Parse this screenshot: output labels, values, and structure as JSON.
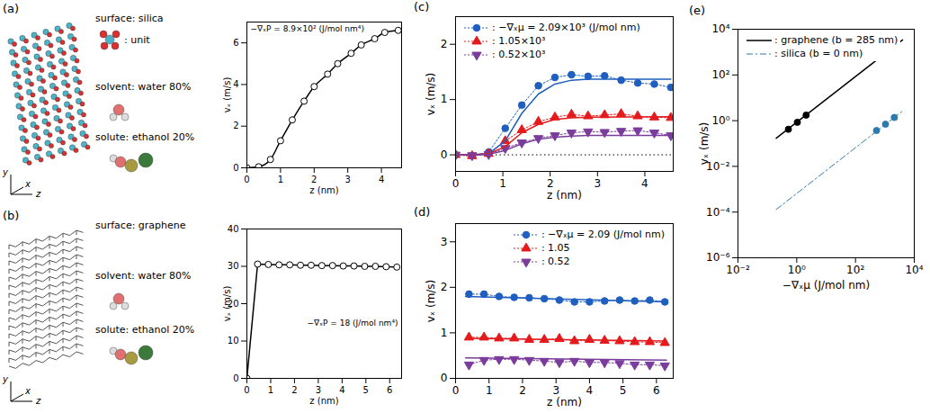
{
  "chart_data": [
    {
      "panel": "(a)",
      "type": "line",
      "description": [
        "surface: silica",
        ": unit",
        "solvent: water 80%",
        "solute: ethanol 20%"
      ],
      "triad": [
        "y",
        "x",
        "z"
      ],
      "annotation": "−∇ₓP = 8.9×10² (J/mol nm⁴)",
      "x_label": "z (nm)",
      "y_label": "vₓ (m/s)",
      "xlim": [
        0,
        4.6
      ],
      "xticks": [
        0,
        1,
        2,
        3,
        4
      ],
      "ylim": [
        0,
        7
      ],
      "yticks": [
        0,
        2,
        4,
        6
      ],
      "series": [
        {
          "type": "line",
          "marker": "open-circle",
          "line_style": "solid",
          "color": "#000000",
          "x": [
            0,
            0.35,
            0.7,
            1.0,
            1.35,
            1.7,
            2.0,
            2.4,
            2.7,
            3.1,
            3.4,
            3.8,
            4.1,
            4.5
          ],
          "values": [
            0,
            0.05,
            0.4,
            1.3,
            2.3,
            3.2,
            3.9,
            4.5,
            5.0,
            5.5,
            5.9,
            6.2,
            6.5,
            6.6
          ]
        }
      ]
    },
    {
      "panel": "(b)",
      "type": "line",
      "description": [
        "surface: graphene",
        "solvent: water 80%",
        "solute: ethanol 20%"
      ],
      "triad": [
        "y",
        "x",
        "z"
      ],
      "annotation": "−∇ₓP = 18 (J/mol nm⁴)",
      "x_label": "z (nm)",
      "y_label": "vₓ (m/s)",
      "xlim": [
        0,
        6.5
      ],
      "xticks": [
        0,
        1,
        2,
        3,
        4,
        5,
        6
      ],
      "ylim": [
        0,
        40
      ],
      "yticks": [
        0,
        10,
        20,
        30,
        40
      ],
      "series": [
        {
          "type": "line",
          "marker": "open-circle",
          "line_style": "solid",
          "color": "#000000",
          "x": [
            0,
            0.45,
            0.9,
            1.35,
            1.8,
            2.25,
            2.7,
            3.15,
            3.6,
            4.05,
            4.5,
            4.95,
            5.4,
            5.85,
            6.3
          ],
          "values": [
            0,
            30.6,
            30.5,
            30.4,
            30.4,
            30.3,
            30.3,
            30.2,
            30.2,
            30.1,
            30.1,
            30.0,
            30.0,
            29.9,
            29.8
          ]
        }
      ]
    },
    {
      "panel": "(c)",
      "type": "line",
      "x_label": "z (nm)",
      "y_label": "vₓ (m/s)",
      "xlim": [
        0,
        4.6
      ],
      "xticks": [
        0,
        1,
        2,
        3,
        4
      ],
      "ylim": [
        -0.3,
        2.5
      ],
      "yticks": [
        0,
        1,
        2
      ],
      "reference_y": 0,
      "legend": "top-left",
      "series": [
        {
          "name": ": −∇ₓμ = 2.09×10³ (J/mol nm)",
          "type": "scatter",
          "marker": "circle",
          "line_style": "dotted",
          "color": "#1f5fc0",
          "x": [
            0,
            0.35,
            0.7,
            1.05,
            1.4,
            1.75,
            2.1,
            2.45,
            2.8,
            3.15,
            3.5,
            3.85,
            4.2,
            4.55
          ],
          "values": [
            0,
            -0.02,
            0.05,
            0.48,
            0.9,
            1.25,
            1.4,
            1.45,
            1.42,
            1.43,
            1.35,
            1.3,
            1.28,
            1.22
          ]
        },
        {
          "name": ": 1.05×10³",
          "type": "scatter",
          "marker": "triangle",
          "line_style": "dotted",
          "color": "#e41a1c",
          "x": [
            0,
            0.35,
            0.7,
            1.05,
            1.4,
            1.75,
            2.1,
            2.45,
            2.8,
            3.15,
            3.5,
            3.85,
            4.2,
            4.55
          ],
          "values": [
            0,
            -0.02,
            0.02,
            0.25,
            0.45,
            0.6,
            0.68,
            0.73,
            0.7,
            0.72,
            0.74,
            0.7,
            0.68,
            0.67
          ]
        },
        {
          "name": ": 0.52×10³",
          "type": "scatter",
          "marker": "triangle-down",
          "line_style": "dotted",
          "color": "#7a3d9b",
          "x": [
            0,
            0.35,
            0.7,
            1.05,
            1.4,
            1.75,
            2.1,
            2.45,
            2.8,
            3.15,
            3.5,
            3.85,
            4.2,
            4.55
          ],
          "values": [
            0,
            -0.01,
            0.01,
            0.12,
            0.22,
            0.3,
            0.35,
            0.4,
            0.42,
            0.41,
            0.43,
            0.44,
            0.4,
            0.35
          ]
        },
        {
          "type": "line",
          "line_style": "solid",
          "color": "#1f5fc0",
          "x": [
            0,
            0.35,
            0.7,
            1.05,
            1.4,
            1.75,
            2.1,
            2.45,
            2.8,
            4.55
          ],
          "values": [
            0,
            0,
            0.02,
            0.25,
            0.75,
            1.1,
            1.28,
            1.35,
            1.37,
            1.37
          ]
        },
        {
          "type": "line",
          "line_style": "solid",
          "color": "#e41a1c",
          "x": [
            0,
            0.35,
            0.7,
            1.05,
            1.4,
            1.75,
            2.1,
            2.45,
            2.8,
            4.55
          ],
          "values": [
            0,
            0,
            0.02,
            0.15,
            0.4,
            0.55,
            0.64,
            0.67,
            0.68,
            0.69
          ]
        },
        {
          "type": "line",
          "line_style": "solid",
          "color": "#7a3d9b",
          "x": [
            0,
            0.35,
            0.7,
            1.05,
            1.4,
            1.75,
            2.1,
            2.45,
            2.8,
            4.55
          ],
          "values": [
            0,
            0,
            0.01,
            0.08,
            0.2,
            0.28,
            0.32,
            0.34,
            0.35,
            0.35
          ]
        }
      ]
    },
    {
      "panel": "(d)",
      "type": "line",
      "x_label": "z (nm)",
      "y_label": "vₓ (m/s)",
      "xlim": [
        0,
        6.5
      ],
      "xticks": [
        0,
        1,
        2,
        3,
        4,
        5,
        6
      ],
      "ylim": [
        0,
        3.4
      ],
      "yticks": [
        0,
        1,
        2,
        3
      ],
      "legend": "top-right",
      "series": [
        {
          "name": ": −∇ₓμ = 2.09 (J/mol nm)",
          "type": "scatter",
          "marker": "circle",
          "line_style": "dotted",
          "color": "#1f5fc0",
          "x": [
            0.4,
            0.85,
            1.3,
            1.75,
            2.2,
            2.65,
            3.1,
            3.55,
            4.0,
            4.45,
            4.9,
            5.35,
            5.8,
            6.25
          ],
          "values": [
            1.85,
            1.85,
            1.8,
            1.78,
            1.77,
            1.75,
            1.72,
            1.68,
            1.68,
            1.7,
            1.72,
            1.7,
            1.72,
            1.68
          ]
        },
        {
          "name": ": 1.05",
          "type": "scatter",
          "marker": "triangle",
          "line_style": "dotted",
          "color": "#e41a1c",
          "x": [
            0.4,
            0.85,
            1.3,
            1.75,
            2.2,
            2.65,
            3.1,
            3.55,
            4.0,
            4.45,
            4.9,
            5.35,
            5.8,
            6.25
          ],
          "values": [
            0.9,
            0.9,
            0.88,
            0.88,
            0.85,
            0.85,
            0.87,
            0.82,
            0.85,
            0.83,
            0.82,
            0.8,
            0.8,
            0.78
          ]
        },
        {
          "name": ": 0.52",
          "type": "scatter",
          "marker": "triangle-down",
          "line_style": "dotted",
          "color": "#7a3d9b",
          "x": [
            0.4,
            0.85,
            1.3,
            1.75,
            2.2,
            2.65,
            3.1,
            3.55,
            4.0,
            4.45,
            4.9,
            5.35,
            5.8,
            6.25
          ],
          "values": [
            0.3,
            0.4,
            0.42,
            0.42,
            0.4,
            0.38,
            0.35,
            0.38,
            0.35,
            0.35,
            0.33,
            0.3,
            0.3,
            0.28
          ]
        },
        {
          "type": "line",
          "line_style": "solid",
          "color": "#1f5fc0",
          "x": [
            0.3,
            6.3
          ],
          "values": [
            1.8,
            1.68
          ]
        },
        {
          "type": "line",
          "line_style": "solid",
          "color": "#e41a1c",
          "x": [
            0.3,
            6.3
          ],
          "values": [
            0.88,
            0.82
          ]
        },
        {
          "type": "line",
          "line_style": "solid",
          "color": "#7a3d9b",
          "x": [
            0.3,
            6.3
          ],
          "values": [
            0.45,
            0.4
          ]
        }
      ]
    },
    {
      "panel": "(e)",
      "type": "line",
      "log": true,
      "x_label": "−∇ₓμ (J/mol nm)",
      "y_label": "vₓ (m/s)",
      "xlim": [
        0.01,
        10000
      ],
      "xticks": [
        {
          "value": 0.01,
          "label": "10⁻²"
        },
        {
          "value": 1,
          "label": "10⁰"
        },
        {
          "value": 100,
          "label": "10²"
        },
        {
          "value": 10000,
          "label": "10⁴"
        }
      ],
      "ylim": [
        1e-06,
        10000
      ],
      "yticks": [
        {
          "value": 1e-06,
          "label": "10⁻⁶"
        },
        {
          "value": 0.0001,
          "label": "10⁻⁴"
        },
        {
          "value": 0.01,
          "label": "10⁻²"
        },
        {
          "value": 1,
          "label": "10⁰"
        },
        {
          "value": 100,
          "label": "10²"
        },
        {
          "value": 10000,
          "label": "10⁴"
        }
      ],
      "legend": "top-left",
      "series": [
        {
          "name": ": graphene (b = 285 nm)",
          "type": "line",
          "line_style": "solid",
          "color": "#000000",
          "x": [
            0.2,
            4000
          ],
          "values": [
            0.17,
            3400
          ]
        },
        {
          "type": "scatter",
          "marker": "circle",
          "color": "#000000",
          "x": [
            0.52,
            1.05,
            2.09
          ],
          "values": [
            0.42,
            0.85,
            1.75
          ]
        },
        {
          "name": ": silica (b = 0 nm)",
          "type": "line",
          "line_style": "dashdot",
          "color": "#2b7bb0",
          "x": [
            0.2,
            4000
          ],
          "values": [
            0.00013,
            2.64
          ]
        },
        {
          "type": "scatter",
          "marker": "circle",
          "color": "#2b7bb0",
          "x": [
            520,
            1050,
            2090
          ],
          "values": [
            0.37,
            0.7,
            1.38
          ]
        }
      ]
    }
  ]
}
